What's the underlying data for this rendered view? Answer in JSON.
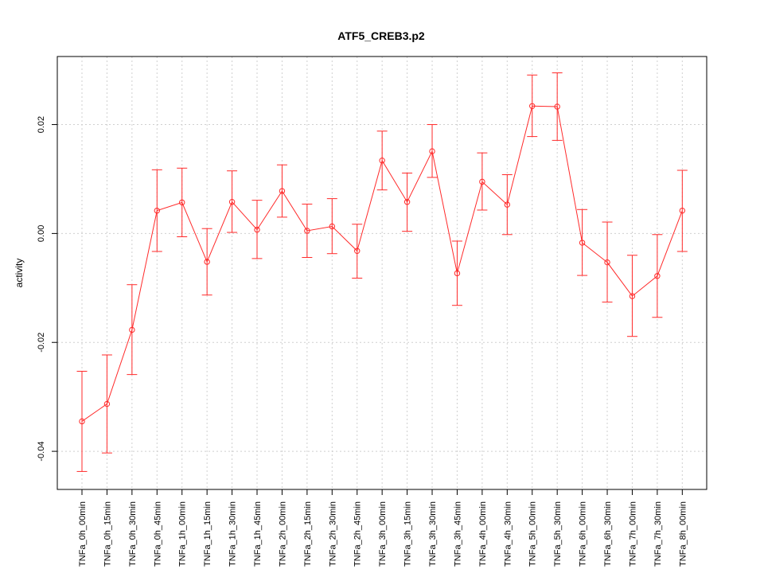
{
  "chart_data": {
    "type": "line",
    "title": "ATF5_CREB3.p2",
    "xlabel": "",
    "ylabel": "activity",
    "ylim": [
      -0.047,
      0.0325
    ],
    "yticks": [
      -0.04,
      -0.02,
      0.0,
      0.02
    ],
    "ytick_labels": [
      "-0.04",
      "-0.02",
      "0.00",
      "0.02"
    ],
    "grid": true,
    "categories": [
      "TNFa_0h_00min",
      "TNFa_0h_15min",
      "TNFa_0h_30min",
      "TNFa_0h_45min",
      "TNFa_1h_00min",
      "TNFa_1h_15min",
      "TNFa_1h_30min",
      "TNFa_1h_45min",
      "TNFa_2h_00min",
      "TNFa_2h_15min",
      "TNFa_2h_30min",
      "TNFa_2h_45min",
      "TNFa_3h_00min",
      "TNFa_3h_15min",
      "TNFa_3h_30min",
      "TNFa_3h_45min",
      "TNFa_4h_00min",
      "TNFa_4h_30min",
      "TNFa_5h_00min",
      "TNFa_5h_30min",
      "TNFa_6h_00min",
      "TNFa_6h_30min",
      "TNFa_7h_00min",
      "TNFa_7h_30min",
      "TNFa_8h_00min"
    ],
    "series": [
      {
        "values": [
          -0.0345,
          -0.0313,
          -0.0177,
          0.0042,
          0.0057,
          -0.0052,
          0.0058,
          0.0007,
          0.0078,
          0.0005,
          0.0013,
          -0.0032,
          0.0134,
          0.0058,
          0.0151,
          -0.0073,
          0.0095,
          0.0053,
          0.0234,
          0.0233,
          -0.0017,
          -0.0053,
          -0.0115,
          -0.0078,
          0.0042
        ],
        "lower": [
          -0.0437,
          -0.0403,
          -0.0259,
          -0.0033,
          -0.0006,
          -0.0113,
          0.0002,
          -0.0046,
          0.003,
          -0.0044,
          -0.0037,
          -0.0082,
          0.008,
          0.0004,
          0.0103,
          -0.0132,
          0.0043,
          -0.0002,
          0.0178,
          0.0171,
          -0.0077,
          -0.0126,
          -0.0189,
          -0.0154,
          -0.0033
        ],
        "upper": [
          -0.0253,
          -0.0223,
          -0.0094,
          0.0117,
          0.012,
          0.0009,
          0.0115,
          0.0061,
          0.0126,
          0.0054,
          0.0064,
          0.0017,
          0.0188,
          0.0111,
          0.02,
          -0.0014,
          0.0148,
          0.0108,
          0.0291,
          0.0295,
          0.0044,
          0.0021,
          -0.004,
          -0.0002,
          0.0116
        ],
        "color": "#ff2a2a"
      }
    ]
  }
}
